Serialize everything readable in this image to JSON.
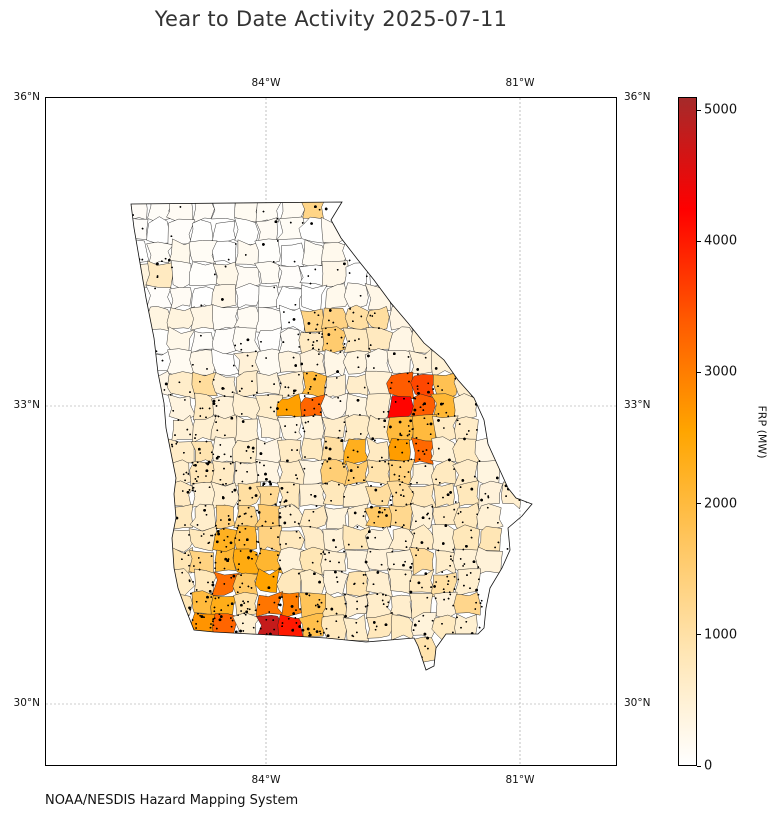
{
  "title": "Year to Date Activity 2025-07-11",
  "credit": "NOAA/NESDIS Hazard Mapping System",
  "map": {
    "region": "Georgia",
    "extent": {
      "lon_min": -86.6,
      "lon_max": -79.9,
      "lat_min": 29.3,
      "lat_max": 36.0
    },
    "lon_ticks": [
      {
        "value": -84,
        "label": "84°W"
      },
      {
        "value": -81,
        "label": "81°W"
      }
    ],
    "lat_ticks": [
      {
        "value": 36,
        "label": "36°N"
      },
      {
        "value": 33,
        "label": "33°N"
      },
      {
        "value": 30,
        "label": "30°N"
      }
    ],
    "colorbar": {
      "label": "FRP (MW)",
      "min": 0,
      "max": 5100,
      "ticks": [
        {
          "value": 0,
          "label": "0"
        },
        {
          "value": 1000,
          "label": "1000"
        },
        {
          "value": 2000,
          "label": "2000"
        },
        {
          "value": 3000,
          "label": "3000"
        },
        {
          "value": 4000,
          "label": "4000"
        },
        {
          "value": 5000,
          "label": "5000"
        }
      ],
      "colors": [
        "#ffffff",
        "#ffe6b5",
        "#ffc660",
        "#ffa500",
        "#ff5a00",
        "#ff0000",
        "#a52a2a"
      ]
    }
  }
}
